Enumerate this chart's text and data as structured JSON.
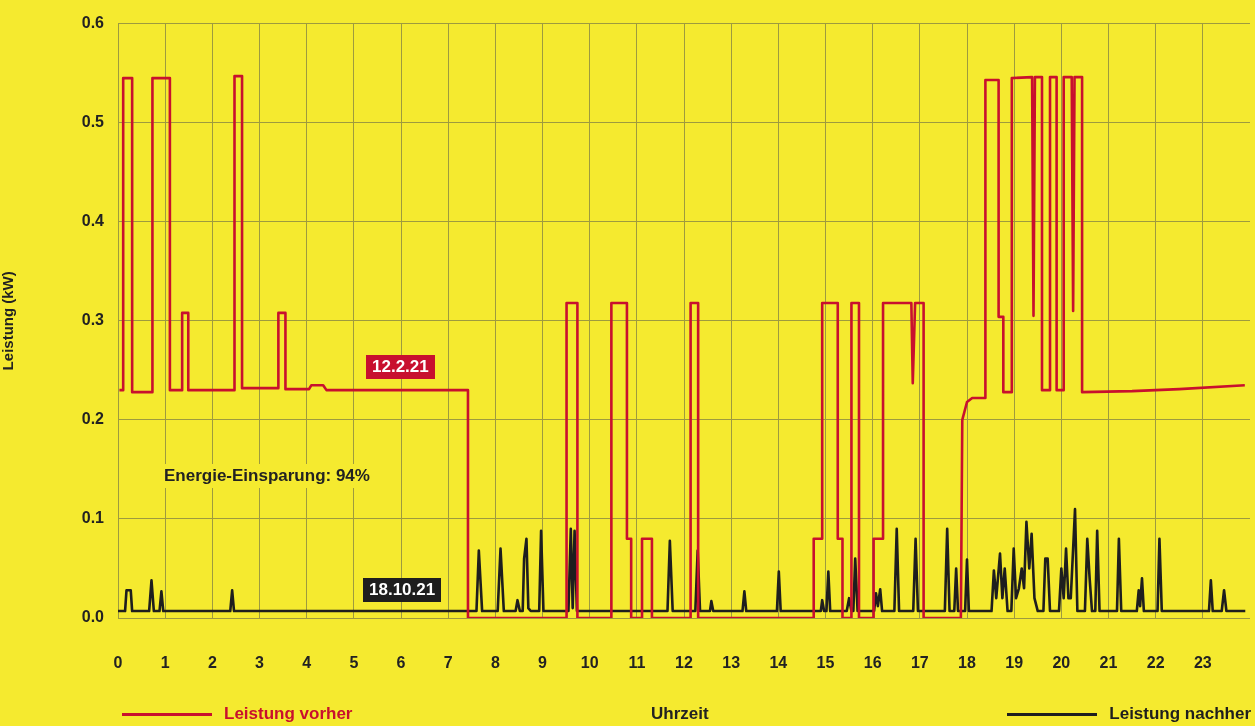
{
  "chart_data": {
    "type": "line",
    "xlabel": "Uhrzeit",
    "ylabel": "Leistung (kW)",
    "xlim": [
      0,
      24
    ],
    "xticks": [
      0,
      1,
      2,
      3,
      4,
      5,
      6,
      7,
      8,
      9,
      10,
      11,
      12,
      13,
      14,
      15,
      16,
      17,
      18,
      19,
      20,
      21,
      22,
      23
    ],
    "ylim": [
      0,
      0.6
    ],
    "yticks": [
      {
        "value": 0,
        "label": "0.0"
      },
      0.1,
      0.2,
      0.3,
      0.4,
      0.5,
      0.6
    ],
    "grid": true,
    "legend": "bottom",
    "marker": "none",
    "annotations": [
      "12.2.21",
      "18.10.21",
      "Energie-Einsparung: 94%"
    ],
    "series": [
      {
        "name": "Leistung vorher",
        "color": "#c8102e",
        "x": [
          0.03,
          0.11,
          0.11,
          0.3,
          0.3,
          0.73,
          0.73,
          1.1,
          1.1,
          1.36,
          1.36,
          1.49,
          1.49,
          2.47,
          2.47,
          2.63,
          2.63,
          3.4,
          3.4,
          3.55,
          3.55,
          4.05,
          4.1,
          4.35,
          4.42,
          7.42,
          7.42,
          9.51,
          9.51,
          9.74,
          9.74,
          10.46,
          10.46,
          10.79,
          10.79,
          10.88,
          10.88,
          11.11,
          11.11,
          11.32,
          11.32,
          12.14,
          12.14,
          12.3,
          12.3,
          14.75,
          14.75,
          14.93,
          14.93,
          15.26,
          15.26,
          15.36,
          15.36,
          15.55,
          15.55,
          15.71,
          15.71,
          16.02,
          16.02,
          16.22,
          16.22,
          16.82,
          16.85,
          16.9,
          17.08,
          17.08,
          17.87,
          17.9,
          18.0,
          18.11,
          18.39,
          18.39,
          18.67,
          18.67,
          18.77,
          18.77,
          18.95,
          18.95,
          19.38,
          19.41,
          19.44,
          19.59,
          19.59,
          19.76,
          19.76,
          19.9,
          19.9,
          20.05,
          20.05,
          20.22,
          20.25,
          20.28,
          20.44,
          20.44,
          21.5,
          22.5,
          23.89
        ],
        "values": [
          0.23,
          0.23,
          0.545,
          0.545,
          0.228,
          0.228,
          0.545,
          0.545,
          0.23,
          0.23,
          0.308,
          0.308,
          0.23,
          0.23,
          0.547,
          0.547,
          0.232,
          0.232,
          0.308,
          0.308,
          0.231,
          0.231,
          0.235,
          0.235,
          0.23,
          0.23,
          0,
          0,
          0.318,
          0.318,
          0,
          0,
          0.318,
          0.318,
          0.08,
          0.08,
          0,
          0,
          0.08,
          0.08,
          0,
          0,
          0.318,
          0.318,
          0,
          0,
          0.08,
          0.08,
          0.318,
          0.318,
          0.08,
          0.08,
          0,
          0,
          0.318,
          0.318,
          0,
          0,
          0.08,
          0.08,
          0.318,
          0.318,
          0.237,
          0.318,
          0.318,
          0,
          0,
          0.2,
          0.218,
          0.222,
          0.222,
          0.543,
          0.543,
          0.304,
          0.304,
          0.228,
          0.228,
          0.545,
          0.546,
          0.305,
          0.546,
          0.546,
          0.23,
          0.23,
          0.546,
          0.546,
          0.23,
          0.23,
          0.546,
          0.546,
          0.31,
          0.546,
          0.546,
          0.228,
          0.229,
          0.231,
          0.235
        ]
      },
      {
        "name": "Leistung nachher",
        "color": "#1e1e1e",
        "x": [
          0.0,
          0.15,
          0.18,
          0.27,
          0.3,
          0.66,
          0.71,
          0.76,
          0.88,
          0.92,
          0.96,
          2.38,
          2.42,
          2.46,
          7.6,
          7.65,
          7.72,
          8.05,
          8.11,
          8.18,
          8.43,
          8.47,
          8.52,
          8.58,
          8.61,
          8.66,
          8.7,
          8.75,
          8.93,
          8.97,
          9.02,
          9.55,
          9.6,
          9.64,
          9.68,
          9.73,
          11.65,
          11.7,
          11.76,
          12.24,
          12.29,
          12.34,
          12.55,
          12.58,
          12.62,
          13.24,
          13.28,
          13.32,
          13.97,
          14.01,
          14.05,
          14.9,
          14.93,
          14.97,
          15.02,
          15.06,
          15.1,
          15.45,
          15.5,
          15.55,
          15.59,
          15.63,
          15.68,
          16.03,
          16.07,
          16.11,
          16.16,
          16.2,
          16.46,
          16.51,
          16.56,
          16.86,
          16.91,
          16.96,
          17.53,
          17.58,
          17.63,
          17.73,
          17.77,
          17.81,
          17.96,
          18.0,
          18.04,
          18.52,
          18.57,
          18.62,
          18.7,
          18.75,
          18.8,
          18.86,
          18.94,
          18.99,
          19.04,
          19.1,
          19.16,
          19.21,
          19.26,
          19.32,
          19.37,
          19.43,
          19.5,
          19.62,
          19.66,
          19.71,
          19.76,
          19.95,
          20.0,
          20.05,
          20.1,
          20.15,
          20.2,
          20.29,
          20.34,
          20.5,
          20.55,
          20.6,
          20.65,
          20.72,
          20.76,
          20.81,
          21.18,
          21.22,
          21.27,
          21.6,
          21.64,
          21.67,
          21.71,
          21.75,
          22.04,
          22.08,
          22.13,
          23.13,
          23.17,
          23.21,
          23.4,
          23.45,
          23.5,
          23.9
        ],
        "values": [
          0.007,
          0.007,
          0.028,
          0.028,
          0.007,
          0.007,
          0.038,
          0.007,
          0.007,
          0.027,
          0.007,
          0.007,
          0.028,
          0.007,
          0.007,
          0.068,
          0.007,
          0.007,
          0.07,
          0.007,
          0.007,
          0.018,
          0.007,
          0.007,
          0.06,
          0.08,
          0.01,
          0.007,
          0.007,
          0.088,
          0.007,
          0.007,
          0.09,
          0.01,
          0.088,
          0.007,
          0.007,
          0.078,
          0.007,
          0.007,
          0.068,
          0.007,
          0.007,
          0.017,
          0.007,
          0.007,
          0.027,
          0.007,
          0.007,
          0.047,
          0.007,
          0.007,
          0.018,
          0.007,
          0.007,
          0.047,
          0.007,
          0.007,
          0.02,
          0.007,
          0.007,
          0.06,
          0.007,
          0.007,
          0.025,
          0.012,
          0.029,
          0.007,
          0.007,
          0.09,
          0.007,
          0.007,
          0.08,
          0.007,
          0.007,
          0.09,
          0.007,
          0.007,
          0.05,
          0.007,
          0.007,
          0.059,
          0.007,
          0.007,
          0.048,
          0.02,
          0.065,
          0.02,
          0.05,
          0.007,
          0.007,
          0.07,
          0.02,
          0.03,
          0.05,
          0.03,
          0.097,
          0.05,
          0.085,
          0.02,
          0.007,
          0.007,
          0.06,
          0.06,
          0.007,
          0.007,
          0.05,
          0.02,
          0.07,
          0.02,
          0.02,
          0.11,
          0.007,
          0.007,
          0.08,
          0.04,
          0.007,
          0.007,
          0.088,
          0.007,
          0.007,
          0.08,
          0.007,
          0.007,
          0.028,
          0.012,
          0.04,
          0.007,
          0.007,
          0.08,
          0.007,
          0.007,
          0.038,
          0.007,
          0.007,
          0.028,
          0.007,
          0.007
        ]
      }
    ]
  }
}
